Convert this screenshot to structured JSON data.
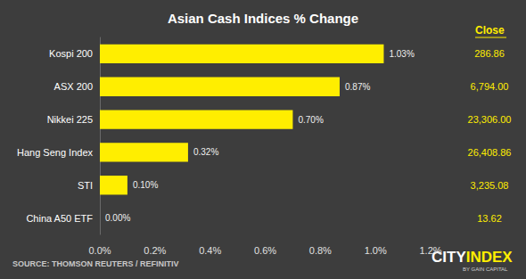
{
  "chart_data": {
    "type": "bar",
    "title": "Asian Cash Indices % Change",
    "orientation": "horizontal",
    "categories": [
      "Kospi 200",
      "ASX 200",
      "Nikkei 225",
      "Hang Seng Index",
      "STI",
      "China A50 ETF"
    ],
    "values": [
      1.03,
      0.87,
      0.7,
      0.32,
      0.1,
      0.0
    ],
    "value_labels": [
      "1.03%",
      "0.87%",
      "0.70%",
      "0.32%",
      "0.10%",
      "0.00%"
    ],
    "data_labels": true,
    "color": "#ffee00",
    "xlim": [
      0,
      1.2
    ],
    "xticks": [
      {
        "value": 0,
        "label": "0.0%"
      },
      {
        "value": 0.2,
        "label": "0.2%"
      },
      {
        "value": 0.4,
        "label": "0.4%"
      },
      {
        "value": 0.6,
        "label": "0.6%"
      },
      {
        "value": 0.8,
        "label": "0.8%"
      },
      {
        "value": 1.0,
        "label": "1.0%"
      },
      {
        "value": 1.2,
        "label": "1.2%"
      }
    ],
    "grid": false,
    "close": {
      "title": "Close",
      "values": [
        "286.86",
        "6,794.00",
        "23,306.00",
        "26,408.86",
        "3,235.08",
        "13.62"
      ]
    },
    "source": "SOURCE: THOMSON REUTERS / REFINITIV",
    "logo": {
      "text": [
        "CITY",
        "INDEX"
      ],
      "subtitle": "BY GAIN CAPITAL"
    }
  }
}
